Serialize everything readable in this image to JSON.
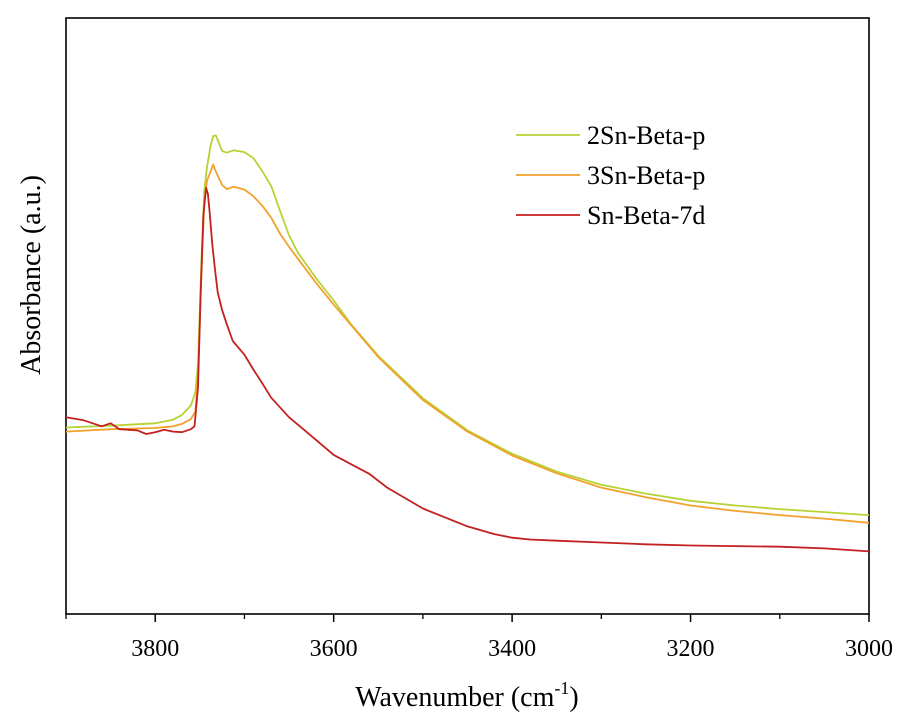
{
  "chart_data": {
    "type": "line",
    "title": "",
    "xlabel": "Wavenumber (cm",
    "xlabel_sup": "-1",
    "xlabel_close": ")",
    "ylabel": "Absorbance (a.u.)",
    "xlim": [
      3900,
      3000
    ],
    "ylim": [
      0,
      100
    ],
    "x_ticks": [
      3800,
      3600,
      3400,
      3200,
      3000
    ],
    "x_tick_labels": [
      "3800",
      "3600",
      "3400",
      "3200",
      "3000"
    ],
    "y_tick_labels": [],
    "legend_position": "top-right",
    "series": [
      {
        "name": "2Sn-Beta-p",
        "color": "#b5d334",
        "x": [
          3900,
          3850,
          3800,
          3780,
          3770,
          3760,
          3755,
          3752,
          3748,
          3745,
          3742,
          3738,
          3735,
          3732,
          3725,
          3720,
          3712,
          3700,
          3690,
          3680,
          3670,
          3660,
          3650,
          3640,
          3620,
          3600,
          3580,
          3550,
          3500,
          3450,
          3400,
          3350,
          3300,
          3250,
          3200,
          3150,
          3100,
          3050,
          3000
        ],
        "y": [
          31.3,
          31.6,
          32.0,
          32.6,
          33.4,
          35.0,
          37.2,
          42.0,
          60.0,
          71.0,
          75.0,
          78.5,
          80.2,
          80.3,
          77.7,
          77.4,
          77.8,
          77.5,
          76.5,
          74.3,
          71.8,
          67.6,
          63.5,
          60.6,
          56.4,
          52.6,
          48.5,
          43.3,
          36.2,
          30.8,
          26.9,
          23.9,
          21.7,
          20.2,
          19.0,
          18.2,
          17.6,
          17.1,
          16.6
        ]
      },
      {
        "name": "3Sn-Beta-p",
        "color": "#f2a12c",
        "x": [
          3900,
          3850,
          3800,
          3780,
          3770,
          3760,
          3755,
          3752,
          3748,
          3745,
          3742,
          3738,
          3735,
          3732,
          3725,
          3720,
          3712,
          3700,
          3690,
          3680,
          3670,
          3660,
          3650,
          3640,
          3620,
          3600,
          3580,
          3550,
          3500,
          3450,
          3400,
          3350,
          3300,
          3250,
          3200,
          3150,
          3100,
          3050,
          3000
        ],
        "y": [
          30.6,
          31.0,
          31.2,
          31.5,
          31.9,
          32.7,
          34.0,
          40.0,
          58.0,
          69.0,
          72.7,
          74.2,
          75.4,
          74.2,
          72.0,
          71.3,
          71.7,
          71.2,
          70.1,
          68.5,
          66.5,
          63.8,
          61.6,
          59.6,
          55.6,
          51.9,
          48.4,
          43.1,
          35.9,
          30.6,
          26.6,
          23.6,
          21.2,
          19.6,
          18.2,
          17.3,
          16.6,
          16.0,
          15.3
        ]
      },
      {
        "name": "Sn-Beta-7d",
        "color": "#c42020",
        "x": [
          3900,
          3880,
          3860,
          3850,
          3840,
          3820,
          3810,
          3800,
          3790,
          3780,
          3770,
          3760,
          3756,
          3752,
          3749,
          3746,
          3743,
          3741,
          3739,
          3736,
          3733,
          3730,
          3725,
          3720,
          3713,
          3700,
          3690,
          3680,
          3670,
          3650,
          3630,
          3600,
          3580,
          3560,
          3540,
          3500,
          3450,
          3420,
          3400,
          3380,
          3350,
          3300,
          3250,
          3200,
          3150,
          3100,
          3050,
          3000
        ],
        "y": [
          33.0,
          32.5,
          31.5,
          32.0,
          31.0,
          30.8,
          30.2,
          30.5,
          30.9,
          30.6,
          30.5,
          31.0,
          31.5,
          38.0,
          54.0,
          67.0,
          71.5,
          70.5,
          67.5,
          62.0,
          57.8,
          54.0,
          51.0,
          48.7,
          45.8,
          43.5,
          41.0,
          38.7,
          36.3,
          33.0,
          30.5,
          26.7,
          25.1,
          23.5,
          21.2,
          17.7,
          14.7,
          13.4,
          12.8,
          12.5,
          12.3,
          12.0,
          11.7,
          11.5,
          11.4,
          11.3,
          11.0,
          10.5
        ]
      }
    ]
  }
}
